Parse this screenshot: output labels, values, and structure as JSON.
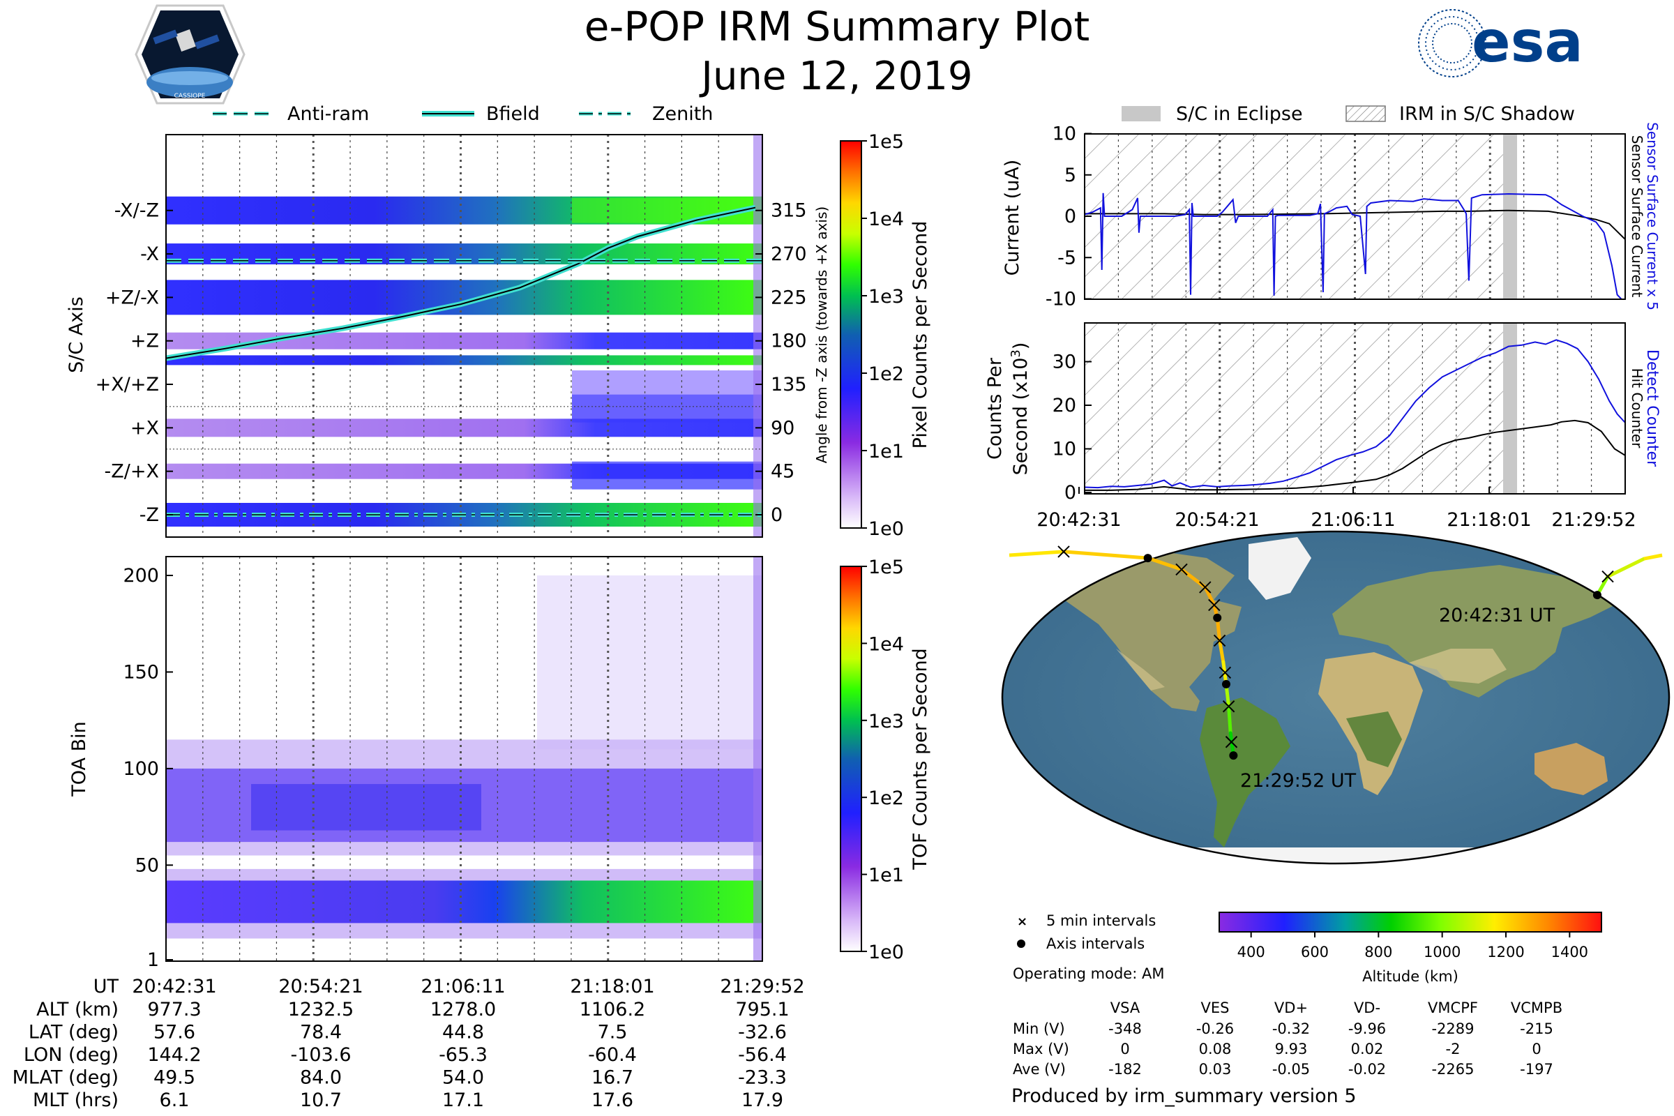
{
  "header": {
    "title": "e-POP IRM Summary Plot",
    "date": "June 12, 2019",
    "left_logo_text": "CASSIOPE",
    "right_logo_text": "esa"
  },
  "colors": {
    "bfield": "#40e0d0",
    "sensor_line": "#1010dd",
    "secondary_line": "#000000",
    "eclipse": "#c8c8c8"
  },
  "legend_top": {
    "anti_ram": "Anti-ram",
    "bfield": "Bfield",
    "zenith": "Zenith"
  },
  "legend_right": {
    "eclipse": "S/C in Eclipse",
    "shadow": "IRM in S/C Shadow"
  },
  "sc_axis_panel": {
    "ylabel": "S/C Axis",
    "axis_labels": [
      "-X/-Z",
      "-X",
      "+Z/-X",
      "+Z",
      "+X/+Z",
      "+X",
      "-Z/+X",
      "-Z"
    ],
    "right_ticks": [
      "315",
      "270",
      "225",
      "180",
      "135",
      "90",
      "45",
      "0"
    ],
    "right_ylabel": "Angle from -Z axis (towards +X axis)",
    "colorbar_label": "Pixel Counts per Second",
    "colorbar_ticks": [
      "1e5",
      "1e4",
      "1e3",
      "1e2",
      "1e1",
      "1e0"
    ]
  },
  "toa_panel": {
    "ylabel": "TOA Bin",
    "yticks": [
      "200",
      "150",
      "100",
      "50",
      "1"
    ],
    "colorbar_label": "TOF Counts per Second",
    "colorbar_ticks": [
      "1e5",
      "1e4",
      "1e3",
      "1e2",
      "1e1",
      "1e0"
    ]
  },
  "current_panel": {
    "ylabel": "Current (uA)",
    "yticks": [
      "10",
      "5",
      "0",
      "-5",
      "-10"
    ],
    "right_label_blue": "Sensor Surface Current x 5",
    "right_label_black": "Sensor Surface Current"
  },
  "counts_panel": {
    "ylabel_line1": "Counts Per",
    "ylabel_line2": "Second (x10",
    "ylabel_sup": "3",
    "ylabel_close": ")",
    "yticks": [
      "30",
      "20",
      "10",
      "0"
    ],
    "right_label_blue": "Detect Counter",
    "right_label_black": "Hit Counter",
    "xticks": [
      "20:42:31",
      "20:54:21",
      "21:06:11",
      "21:18:01",
      "21:29:52"
    ]
  },
  "chart_data": {
    "type": "line",
    "x": [
      "20:42:31",
      "20:54:21",
      "21:06:11",
      "21:18:01",
      "21:29:52"
    ],
    "bfield_angle_deg": [
      [
        0.0,
        162
      ],
      [
        0.1,
        172
      ],
      [
        0.2,
        183
      ],
      [
        0.3,
        193
      ],
      [
        0.4,
        205
      ],
      [
        0.5,
        218
      ],
      [
        0.6,
        235
      ],
      [
        0.7,
        260
      ],
      [
        0.75,
        276
      ],
      [
        0.8,
        288
      ],
      [
        0.9,
        305
      ],
      [
        1.0,
        318
      ]
    ],
    "anti_ram_angle_deg": 263,
    "zenith_angle_deg": 0,
    "sensor_current_x5_uA": [
      [
        0.0,
        0.2
      ],
      [
        0.03,
        0.5
      ],
      [
        0.06,
        1.0
      ],
      [
        0.065,
        -6.5
      ],
      [
        0.07,
        2.8
      ],
      [
        0.075,
        0.0
      ],
      [
        0.14,
        0.0
      ],
      [
        0.155,
        0.3
      ],
      [
        0.18,
        0.8
      ],
      [
        0.2,
        2.2
      ],
      [
        0.205,
        -2.0
      ],
      [
        0.21,
        0.0
      ],
      [
        0.34,
        0.0
      ],
      [
        0.38,
        0.2
      ],
      [
        0.395,
        0.8
      ],
      [
        0.4,
        -9.5
      ],
      [
        0.405,
        1.6
      ],
      [
        0.41,
        0.0
      ],
      [
        0.5,
        0.0
      ],
      [
        0.52,
        0.5
      ],
      [
        0.56,
        2.0
      ],
      [
        0.57,
        -0.8
      ],
      [
        0.58,
        0.0
      ],
      [
        0.69,
        0.0
      ],
      [
        0.71,
        0.8
      ],
      [
        0.715,
        -9.6
      ],
      [
        0.72,
        0.0
      ],
      [
        0.73,
        0.1
      ],
      [
        0.85,
        0.1
      ],
      [
        0.88,
        0.3
      ],
      [
        0.89,
        1.5
      ],
      [
        0.9,
        -9.2
      ],
      [
        0.905,
        0.3
      ],
      [
        0.92,
        0.5
      ],
      [
        0.95,
        1.0
      ],
      [
        0.99,
        1.2
      ],
      [
        1.01,
        0.2
      ],
      [
        1.04,
        0.0
      ],
      [
        1.06,
        -7.0
      ],
      [
        1.065,
        1.2
      ],
      [
        1.08,
        1.6
      ],
      [
        1.15,
        1.9
      ],
      [
        1.24,
        1.8
      ],
      [
        1.28,
        2.1
      ],
      [
        1.35,
        1.9
      ],
      [
        1.41,
        1.9
      ],
      [
        1.435,
        0.6
      ],
      [
        1.44,
        0.3
      ],
      [
        1.45,
        -7.8
      ],
      [
        1.46,
        2.2
      ],
      [
        1.5,
        2.6
      ],
      [
        1.6,
        2.7
      ],
      [
        1.74,
        2.6
      ],
      [
        1.76,
        2.3
      ],
      [
        1.8,
        1.4
      ],
      [
        1.88,
        0.0
      ],
      [
        1.93,
        -0.7
      ],
      [
        1.96,
        -2.0
      ],
      [
        1.99,
        -6.0
      ],
      [
        2.01,
        -9.5
      ],
      [
        2.04,
        -10.5
      ]
    ],
    "sensor_current_uA": [
      [
        0.0,
        0.3
      ],
      [
        0.3,
        0.3
      ],
      [
        0.45,
        0.2
      ],
      [
        0.6,
        0.2
      ],
      [
        0.9,
        0.3
      ],
      [
        1.05,
        0.4
      ],
      [
        1.2,
        0.5
      ],
      [
        1.35,
        0.6
      ],
      [
        1.45,
        0.6
      ],
      [
        1.6,
        0.7
      ],
      [
        1.75,
        0.6
      ],
      [
        1.85,
        0.1
      ],
      [
        1.93,
        -0.4
      ],
      [
        1.98,
        -0.9
      ],
      [
        2.04,
        -2.8
      ]
    ],
    "detect_counter_k": [
      [
        0.0,
        1.2
      ],
      [
        0.05,
        1.1
      ],
      [
        0.1,
        1.4
      ],
      [
        0.15,
        1.3
      ],
      [
        0.2,
        1.6
      ],
      [
        0.25,
        1.9
      ],
      [
        0.3,
        2.8
      ],
      [
        0.33,
        1.5
      ],
      [
        0.36,
        2.2
      ],
      [
        0.4,
        1.2
      ],
      [
        0.45,
        1.6
      ],
      [
        0.5,
        1.3
      ],
      [
        0.55,
        1.5
      ],
      [
        0.6,
        1.6
      ],
      [
        0.65,
        1.8
      ],
      [
        0.7,
        2.1
      ],
      [
        0.75,
        2.6
      ],
      [
        0.8,
        3.5
      ],
      [
        0.85,
        4.5
      ],
      [
        0.9,
        6.0
      ],
      [
        0.95,
        7.5
      ],
      [
        1.0,
        8.5
      ],
      [
        1.05,
        9.3
      ],
      [
        1.1,
        10.5
      ],
      [
        1.15,
        13.0
      ],
      [
        1.2,
        17.0
      ],
      [
        1.25,
        21.0
      ],
      [
        1.3,
        24.0
      ],
      [
        1.35,
        26.5
      ],
      [
        1.4,
        28.0
      ],
      [
        1.45,
        29.5
      ],
      [
        1.5,
        31.0
      ],
      [
        1.55,
        32.0
      ],
      [
        1.6,
        33.5
      ],
      [
        1.65,
        33.8
      ],
      [
        1.7,
        34.5
      ],
      [
        1.74,
        34.0
      ],
      [
        1.78,
        35.0
      ],
      [
        1.82,
        34.2
      ],
      [
        1.86,
        33.0
      ],
      [
        1.9,
        30.0
      ],
      [
        1.94,
        26.0
      ],
      [
        1.98,
        21.0
      ],
      [
        2.01,
        18.0
      ],
      [
        2.04,
        16.0
      ]
    ],
    "hit_counter_k": [
      [
        0.0,
        0.5
      ],
      [
        0.1,
        0.5
      ],
      [
        0.2,
        0.7
      ],
      [
        0.3,
        1.3
      ],
      [
        0.4,
        0.6
      ],
      [
        0.5,
        0.6
      ],
      [
        0.6,
        0.7
      ],
      [
        0.7,
        0.8
      ],
      [
        0.8,
        1.0
      ],
      [
        0.9,
        1.5
      ],
      [
        1.0,
        2.2
      ],
      [
        1.1,
        3.0
      ],
      [
        1.15,
        4.0
      ],
      [
        1.2,
        5.5
      ],
      [
        1.25,
        7.5
      ],
      [
        1.3,
        9.5
      ],
      [
        1.35,
        11.0
      ],
      [
        1.4,
        12.0
      ],
      [
        1.45,
        12.5
      ],
      [
        1.5,
        13.2
      ],
      [
        1.55,
        13.8
      ],
      [
        1.6,
        14.2
      ],
      [
        1.65,
        14.6
      ],
      [
        1.7,
        15.0
      ],
      [
        1.76,
        15.5
      ],
      [
        1.8,
        16.2
      ],
      [
        1.85,
        16.5
      ],
      [
        1.9,
        16.0
      ],
      [
        1.95,
        14.0
      ],
      [
        2.0,
        10.0
      ],
      [
        2.04,
        8.5
      ]
    ],
    "ground_track": [
      {
        "lon": 144.2,
        "lat": 57.6,
        "alt": 977
      },
      {
        "lon": 150.0,
        "lat": 68.0,
        "alt": 1050
      },
      {
        "lon": 170.0,
        "lat": 78.0,
        "alt": 1150
      },
      {
        "lon": -150.0,
        "lat": 82.0,
        "alt": 1200
      },
      {
        "lon": -103.6,
        "lat": 78.4,
        "alt": 1232
      },
      {
        "lon": -85.0,
        "lat": 72.0,
        "alt": 1255
      },
      {
        "lon": -72.0,
        "lat": 62.0,
        "alt": 1270
      },
      {
        "lon": -67.0,
        "lat": 52.0,
        "alt": 1277
      },
      {
        "lon": -65.3,
        "lat": 44.8,
        "alt": 1278
      },
      {
        "lon": -64.0,
        "lat": 32.0,
        "alt": 1255
      },
      {
        "lon": -62.0,
        "lat": 20.0,
        "alt": 1200
      },
      {
        "lon": -60.4,
        "lat": 7.5,
        "alt": 1106
      },
      {
        "lon": -59.0,
        "lat": -5.0,
        "alt": 1000
      },
      {
        "lon": -58.0,
        "lat": -20.0,
        "alt": 890
      },
      {
        "lon": -56.4,
        "lat": -32.6,
        "alt": 795
      }
    ],
    "five_min_markers": [
      {
        "lon": 150.0,
        "lat": 68.0
      },
      {
        "lon": -150.0,
        "lat": 82.0
      },
      {
        "lon": -85.0,
        "lat": 72.0
      },
      {
        "lon": -72.0,
        "lat": 62.0
      },
      {
        "lon": -67.0,
        "lat": 52.0
      },
      {
        "lon": -64.0,
        "lat": 32.0
      },
      {
        "lon": -61.0,
        "lat": 14.0
      },
      {
        "lon": -59.0,
        "lat": -5.0
      },
      {
        "lon": -57.5,
        "lat": -25.0
      }
    ],
    "axis_markers": [
      {
        "lon": 144.2,
        "lat": 57.6
      },
      {
        "lon": -103.6,
        "lat": 78.4
      },
      {
        "lon": -65.3,
        "lat": 44.8
      },
      {
        "lon": -60.4,
        "lat": 7.5
      },
      {
        "lon": -56.4,
        "lat": -32.6
      }
    ],
    "altitude_range_km": [
      300,
      1500
    ]
  },
  "map": {
    "start_label": "20:42:31 UT",
    "end_label": "21:29:52 UT",
    "legend_5min": "5 min intervals",
    "legend_axis": "Axis intervals",
    "operating_mode": "Operating mode: AM",
    "altitude_label": "Altitude (km)",
    "altitude_ticks": [
      "400",
      "600",
      "800",
      "1000",
      "1200",
      "1400"
    ]
  },
  "ephemeris": {
    "header": [
      "UT",
      "20:42:31",
      "20:54:21",
      "21:06:11",
      "21:18:01",
      "21:29:52"
    ],
    "rows": [
      {
        "label": "ALT (km)",
        "values": [
          "977.3",
          "1232.5",
          "1278.0",
          "1106.2",
          "795.1"
        ]
      },
      {
        "label": "LAT (deg)",
        "values": [
          "57.6",
          "78.4",
          "44.8",
          "7.5",
          "-32.6"
        ]
      },
      {
        "label": "LON (deg)",
        "values": [
          "144.2",
          "-103.6",
          "-65.3",
          "-60.4",
          "-56.4"
        ]
      },
      {
        "label": "MLAT (deg)",
        "values": [
          "49.5",
          "84.0",
          "54.0",
          "16.7",
          "-23.3"
        ]
      },
      {
        "label": "MLT (hrs)",
        "values": [
          "6.1",
          "10.7",
          "17.1",
          "17.6",
          "17.9"
        ]
      }
    ]
  },
  "voltages": {
    "columns": [
      "VSA",
      "VES",
      "VD+",
      "VD-",
      "VMCPF",
      "VCMPB"
    ],
    "rows": [
      {
        "label": "Min (V)",
        "values": [
          "-348",
          "-0.26",
          "-0.32",
          "-9.96",
          "-2289",
          "-215"
        ]
      },
      {
        "label": "Max (V)",
        "values": [
          "0",
          "0.08",
          "9.93",
          "0.02",
          "-2",
          "0"
        ]
      },
      {
        "label": "Ave (V)",
        "values": [
          "-182",
          "0.03",
          "-0.05",
          "-0.02",
          "-2265",
          "-197"
        ]
      }
    ]
  },
  "footer": {
    "produced_by": "Produced by irm_summary version 5"
  }
}
